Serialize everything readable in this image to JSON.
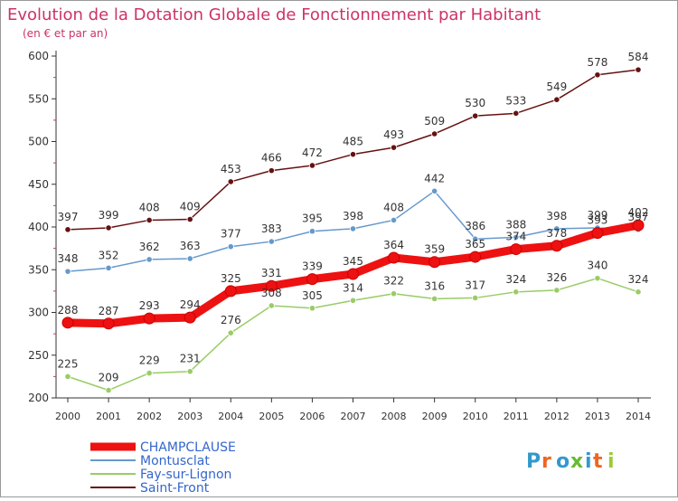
{
  "chart_data": {
    "type": "line",
    "title": "Evolution de la Dotation Globale de Fonctionnement par Habitant",
    "subtitle": "(en € et par an)",
    "xlabel": "",
    "ylabel": "",
    "x": [
      "2000",
      "2001",
      "2002",
      "2003",
      "2004",
      "2005",
      "2006",
      "2007",
      "2008",
      "2009",
      "2010",
      "2011",
      "2012",
      "2013",
      "2014"
    ],
    "ylim": [
      200,
      600
    ],
    "yticks": [
      200,
      250,
      300,
      350,
      400,
      450,
      500,
      550,
      600
    ],
    "grid": false,
    "legend_position": "bottom-left",
    "series": [
      {
        "name": "CHAMPCLAUSE",
        "color": "#ee1111",
        "values": [
          288,
          287,
          293,
          294,
          325,
          331,
          339,
          345,
          364,
          359,
          365,
          374,
          378,
          393,
          402
        ]
      },
      {
        "name": "Montusclat",
        "color": "#6699cc",
        "values": [
          348,
          352,
          362,
          363,
          377,
          383,
          395,
          398,
          408,
          442,
          386,
          388,
          398,
          399,
          397
        ]
      },
      {
        "name": "Fay-sur-Lignon",
        "color": "#99cc66",
        "values": [
          225,
          209,
          229,
          231,
          276,
          308,
          305,
          314,
          322,
          316,
          317,
          324,
          326,
          340,
          324
        ]
      },
      {
        "name": "Saint-Front",
        "color": "#661111",
        "values": [
          397,
          399,
          408,
          409,
          453,
          466,
          472,
          485,
          493,
          509,
          530,
          533,
          549,
          578,
          584
        ]
      }
    ]
  },
  "brand": {
    "text": "Proxiti"
  },
  "colors": {
    "title": "#cc3366",
    "axis": "#333333",
    "tick": "#cc3366",
    "background": "#ffffff"
  }
}
